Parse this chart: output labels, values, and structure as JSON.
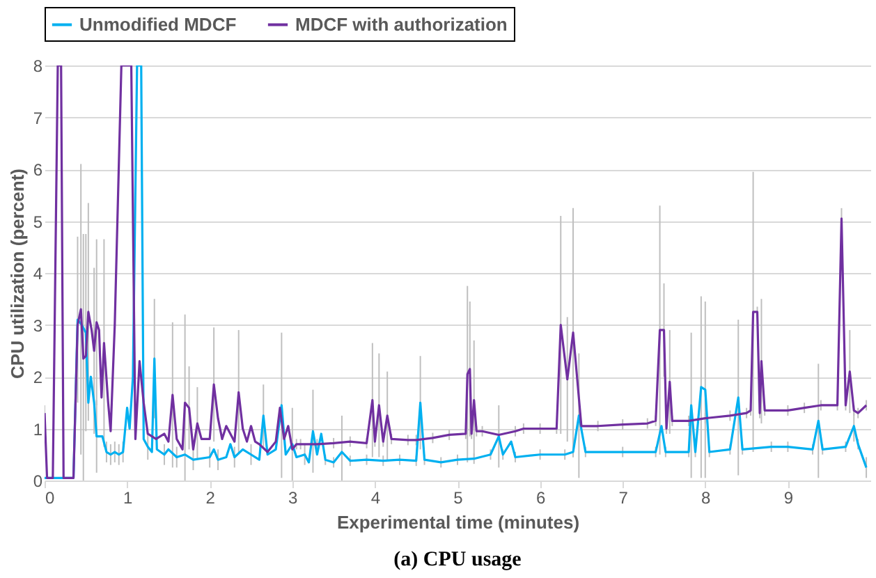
{
  "chart_data": {
    "type": "line",
    "title": "(a) CPU usage",
    "xlabel": "Experimental time (minutes)",
    "ylabel": "CPU utilization (percent)",
    "xlim": [
      0,
      10
    ],
    "xticks": [
      0,
      1,
      2,
      3,
      4,
      5,
      6,
      7,
      8,
      9
    ],
    "ylim": [
      0,
      8
    ],
    "yticks": [
      0,
      1,
      2,
      3,
      4,
      5,
      6,
      7,
      8
    ],
    "grid": "y",
    "legend": "top",
    "marker": "none",
    "line_style": "solid",
    "series": [
      {
        "name": "Unmodified MDCF",
        "color": "#00b0f0",
        "x": [
          0,
          0.35,
          0.4,
          0.45,
          0.5,
          0.53,
          0.56,
          0.6,
          0.63,
          0.7,
          0.75,
          0.8,
          0.85,
          0.9,
          0.95,
          1.0,
          1.03,
          1.07,
          1.12,
          1.17,
          1.2,
          1.25,
          1.3,
          1.33,
          1.36,
          1.45,
          1.5,
          1.6,
          1.7,
          1.8,
          2.0,
          2.05,
          2.1,
          2.2,
          2.25,
          2.3,
          2.4,
          2.5,
          2.6,
          2.65,
          2.7,
          2.8,
          2.87,
          2.92,
          3.0,
          3.05,
          3.15,
          3.2,
          3.25,
          3.3,
          3.35,
          3.4,
          3.5,
          3.6,
          3.7,
          3.9,
          4.1,
          4.3,
          4.5,
          4.55,
          4.6,
          4.8,
          5.0,
          5.2,
          5.4,
          5.5,
          5.55,
          5.65,
          5.7,
          6.0,
          6.3,
          6.4,
          6.47,
          6.55,
          7.0,
          7.4,
          7.47,
          7.52,
          7.8,
          7.83,
          7.88,
          7.95,
          8.0,
          8.05,
          8.3,
          8.4,
          8.45,
          8.8,
          9.0,
          9.3,
          9.37,
          9.42,
          9.7,
          9.8,
          9.85,
          9.95
        ],
        "values": [
          0.05,
          0.05,
          3.1,
          3.0,
          2.85,
          1.5,
          2.0,
          1.5,
          0.85,
          0.85,
          0.55,
          0.5,
          0.55,
          0.5,
          0.55,
          1.4,
          1.0,
          2.0,
          8,
          8,
          0.8,
          0.65,
          0.55,
          2.35,
          0.6,
          0.5,
          0.6,
          0.45,
          0.5,
          0.4,
          0.45,
          0.6,
          0.4,
          0.45,
          0.7,
          0.45,
          0.6,
          0.5,
          0.4,
          1.25,
          0.5,
          0.6,
          1.45,
          0.5,
          0.7,
          0.45,
          0.5,
          0.35,
          0.95,
          0.5,
          0.9,
          0.4,
          0.35,
          0.55,
          0.38,
          0.4,
          0.38,
          0.4,
          0.38,
          1.5,
          0.4,
          0.35,
          0.4,
          0.42,
          0.5,
          0.85,
          0.5,
          0.75,
          0.45,
          0.5,
          0.5,
          0.55,
          1.25,
          0.55,
          0.55,
          0.55,
          1.05,
          0.55,
          0.55,
          1.45,
          0.55,
          1.8,
          1.75,
          0.55,
          0.6,
          1.6,
          0.6,
          0.65,
          0.65,
          0.6,
          1.15,
          0.6,
          0.65,
          1.05,
          0.7,
          0.25
        ],
        "errors": [
          null,
          null,
          1.6,
          null,
          1.9,
          null,
          null,
          null,
          0.7,
          null,
          0.2,
          0.2,
          0.2,
          0.2,
          0.2,
          null,
          null,
          null,
          null,
          null,
          null,
          0.25,
          null,
          1.15,
          null,
          0.2,
          null,
          0.2,
          null,
          0.2,
          0.2,
          null,
          0.2,
          null,
          null,
          0.2,
          null,
          0.2,
          null,
          0.6,
          null,
          null,
          1.4,
          null,
          0.7,
          null,
          0.2,
          null,
          0.8,
          null,
          null,
          0.1,
          0.1,
          0.7,
          0.1,
          0.1,
          0.1,
          0.1,
          0.1,
          0.9,
          0.1,
          0.1,
          0.1,
          0.1,
          0.1,
          0.6,
          0.1,
          null,
          0.1,
          0.1,
          0.1,
          0.1,
          1.2,
          0.1,
          0.1,
          0.1,
          null,
          0.1,
          0.1,
          1.4,
          0.1,
          1.75,
          1.7,
          0.1,
          0.1,
          1.5,
          0.1,
          0.1,
          0.1,
          0.1,
          1.1,
          0.1,
          0.1,
          0.3,
          0.1,
          0.2
        ]
      },
      {
        "name": "MDCF with authorization",
        "color": "#7030a0",
        "x": [
          0,
          0.03,
          0.1,
          0.16,
          0.2,
          0.23,
          0.35,
          0.4,
          0.44,
          0.47,
          0.5,
          0.53,
          0.57,
          0.6,
          0.63,
          0.66,
          0.69,
          0.72,
          0.77,
          0.8,
          0.85,
          0.93,
          1.05,
          1.1,
          1.15,
          1.2,
          1.25,
          1.35,
          1.45,
          1.5,
          1.55,
          1.6,
          1.67,
          1.7,
          1.75,
          1.8,
          1.85,
          1.9,
          2.0,
          2.05,
          2.1,
          2.15,
          2.2,
          2.3,
          2.35,
          2.4,
          2.45,
          2.5,
          2.55,
          2.6,
          2.7,
          2.8,
          2.85,
          2.9,
          2.95,
          3.0,
          3.05,
          3.1,
          3.3,
          3.5,
          3.7,
          3.9,
          3.97,
          4.0,
          4.05,
          4.1,
          4.15,
          4.2,
          4.4,
          4.5,
          4.7,
          4.9,
          5.1,
          5.12,
          5.15,
          5.17,
          5.2,
          5.23,
          5.3,
          5.5,
          5.7,
          5.8,
          6.0,
          6.2,
          6.25,
          6.33,
          6.4,
          6.5,
          6.7,
          7.0,
          7.3,
          7.4,
          7.45,
          7.5,
          7.53,
          7.57,
          7.6,
          7.8,
          8.0,
          8.3,
          8.5,
          8.55,
          8.58,
          8.63,
          8.66,
          8.68,
          8.72,
          9.0,
          9.2,
          9.4,
          9.6,
          9.65,
          9.7,
          9.75,
          9.8,
          9.85,
          9.95
        ],
        "values": [
          1.3,
          0.05,
          0.05,
          8,
          8,
          0.05,
          0.05,
          3.0,
          3.3,
          2.35,
          2.4,
          3.25,
          2.9,
          2.5,
          3.05,
          2.9,
          1.6,
          2.65,
          1.5,
          0.95,
          3.0,
          8,
          8,
          0.8,
          2.3,
          1.5,
          0.9,
          0.8,
          0.9,
          0.75,
          1.65,
          0.8,
          0.6,
          1.5,
          1.4,
          0.6,
          1.1,
          0.8,
          0.8,
          1.85,
          1.2,
          0.8,
          1.05,
          0.75,
          1.7,
          1.0,
          0.75,
          1.05,
          0.75,
          0.7,
          0.55,
          0.75,
          1.4,
          0.8,
          1.05,
          0.6,
          0.7,
          0.7,
          0.7,
          0.72,
          0.75,
          0.72,
          1.55,
          0.75,
          1.45,
          0.75,
          1.25,
          0.8,
          0.78,
          0.78,
          0.82,
          0.88,
          0.9,
          2.05,
          2.15,
          0.9,
          1.55,
          0.95,
          0.95,
          0.88,
          0.95,
          1.0,
          1.0,
          1.0,
          3.0,
          1.95,
          2.85,
          1.05,
          1.05,
          1.08,
          1.1,
          1.15,
          2.9,
          2.9,
          1.0,
          1.9,
          1.15,
          1.15,
          1.2,
          1.25,
          1.3,
          1.35,
          3.25,
          3.25,
          1.3,
          2.3,
          1.35,
          1.35,
          1.4,
          1.45,
          1.45,
          5.05,
          1.45,
          2.1,
          1.35,
          1.3,
          1.45
        ],
        "errors": [
          0.15,
          null,
          null,
          null,
          null,
          null,
          null,
          null,
          2.8,
          2.4,
          null,
          2.1,
          null,
          1.6,
          1.6,
          null,
          null,
          2.0,
          null,
          null,
          null,
          null,
          null,
          null,
          null,
          null,
          null,
          null,
          null,
          null,
          1.4,
          null,
          null,
          1.7,
          0.8,
          null,
          0.7,
          null,
          null,
          1.1,
          null,
          null,
          null,
          null,
          1.2,
          null,
          null,
          null,
          null,
          null,
          null,
          null,
          null,
          null,
          null,
          null,
          0.1,
          0.1,
          0.1,
          0.1,
          0.1,
          0.1,
          1.1,
          0.1,
          1.0,
          0.1,
          0.85,
          0.1,
          0.1,
          0.1,
          0.1,
          0.1,
          0.1,
          1.7,
          1.3,
          0.1,
          1.15,
          0.1,
          0.1,
          0.1,
          0.1,
          0.1,
          0.1,
          0.1,
          2.1,
          1.2,
          2.4,
          0.1,
          0.1,
          0.1,
          0.1,
          0.1,
          2.4,
          0.9,
          0.1,
          1.0,
          0.1,
          0.1,
          0.1,
          0.1,
          0.1,
          0.1,
          2.7,
          0.1,
          0.1,
          1.2,
          0.1,
          0.1,
          0.1,
          0.1,
          0.1,
          0.2,
          0.1,
          0.8,
          0.1,
          0.1,
          0.1
        ]
      }
    ]
  }
}
